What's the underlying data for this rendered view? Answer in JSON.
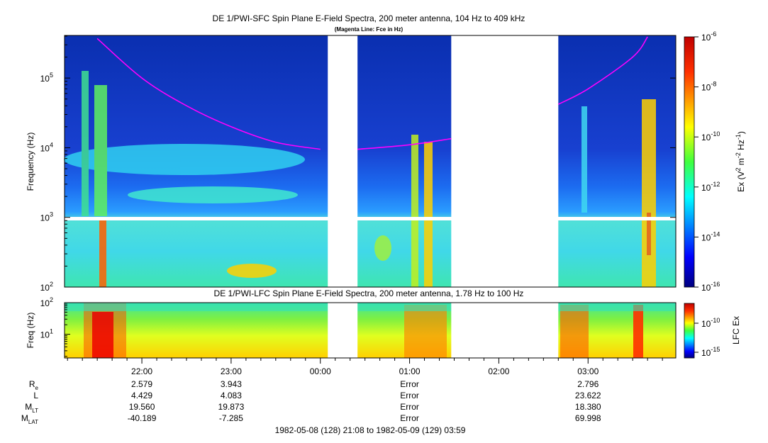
{
  "chart_data": [
    {
      "type": "heatmap",
      "title": "DE 1/PWI-SFC  Spin Plane E-Field Spectra, 200 meter antenna, 104 Hz to 409 kHz",
      "subtitle": "(Magenta Line: Fce in Hz)",
      "ylabel": "Frequency (Hz)",
      "yscale": "log",
      "ylim": [
        100,
        409000
      ],
      "y_ticks": [
        {
          "label": "10",
          "exp": "2"
        },
        {
          "label": "10",
          "exp": "3"
        },
        {
          "label": "10",
          "exp": "4"
        },
        {
          "label": "10",
          "exp": "5"
        }
      ],
      "colorbar": {
        "label_main": "Ex (V",
        "label_sup1": "2",
        "label_mid": " m",
        "label_sup2": "-2",
        "label_mid2": " Hz",
        "label_sup3": "-1",
        "label_end": ")",
        "scale": "log",
        "range": [
          "1e-16",
          "1e-6"
        ],
        "ticks": [
          {
            "label": "10",
            "exp": "-6"
          },
          {
            "label": "10",
            "exp": "-8"
          },
          {
            "label": "10",
            "exp": "-10"
          },
          {
            "label": "10",
            "exp": "-12"
          },
          {
            "label": "10",
            "exp": "-14"
          },
          {
            "label": "10",
            "exp": "-16"
          }
        ]
      },
      "data_gaps": [
        [
          "00:05",
          "00:25"
        ],
        [
          "01:28",
          "02:40"
        ]
      ],
      "fce_line_color": "#ff00ff",
      "fce_line": [
        {
          "t": "21:30",
          "f": 370000
        },
        {
          "t": "22:00",
          "f": 100000
        },
        {
          "t": "22:30",
          "f": 40000
        },
        {
          "t": "23:00",
          "f": 20000
        },
        {
          "t": "23:30",
          "f": 12000
        },
        {
          "t": "00:00",
          "f": 9500
        },
        {
          "t": "00:25",
          "f": 9500
        },
        {
          "t": "01:00",
          "f": 11000
        },
        {
          "t": "01:28",
          "f": 13500
        },
        {
          "t": "02:40",
          "f": 42000
        },
        {
          "t": "03:00",
          "f": 70000
        },
        {
          "t": "03:30",
          "f": 200000
        },
        {
          "t": "03:40",
          "f": 390000
        }
      ]
    },
    {
      "type": "heatmap",
      "title": "DE 1/PWI-LFC  Spin Plane E-Field Spectra, 200 meter antenna, 1.78 Hz to 100 Hz",
      "ylabel": "Freq (Hz)",
      "yscale": "log",
      "ylim": [
        1.78,
        100
      ],
      "y_ticks": [
        {
          "label": "10",
          "exp": "2"
        },
        {
          "label": "10",
          "exp": "1"
        }
      ],
      "colorbar": {
        "label": "LFC Ex",
        "scale": "log",
        "ticks": [
          {
            "label": "10",
            "exp": "-10"
          },
          {
            "label": "10",
            "exp": "-15"
          }
        ]
      },
      "data_gaps": [
        [
          "00:05",
          "00:25"
        ],
        [
          "01:28",
          "02:40"
        ]
      ]
    }
  ],
  "x_axis": {
    "start": "21:08",
    "end": "03:59",
    "ticks": [
      "22:00",
      "23:00",
      "00:00",
      "01:00",
      "02:00",
      "03:00"
    ]
  },
  "ephemeris": {
    "rows": [
      {
        "name": "Re",
        "label": "R",
        "sub": "e",
        "values": [
          "2.579",
          "3.943",
          "",
          "Error",
          "",
          "2.796"
        ]
      },
      {
        "name": "L",
        "label": "L",
        "sub": "",
        "values": [
          "4.429",
          "4.083",
          "",
          "Error",
          "",
          "23.622"
        ]
      },
      {
        "name": "MLT",
        "label": "M",
        "sub": "LT",
        "values": [
          "19.560",
          "19.873",
          "",
          "Error",
          "",
          "18.380"
        ]
      },
      {
        "name": "MLAT",
        "label": "M",
        "sub": "LAT",
        "values": [
          "-40.189",
          "-7.285",
          "",
          "Error",
          "",
          "69.998"
        ]
      }
    ]
  },
  "footer": "1982-05-08 (128) 21:08 to 1982-05-09 (129) 03:59"
}
